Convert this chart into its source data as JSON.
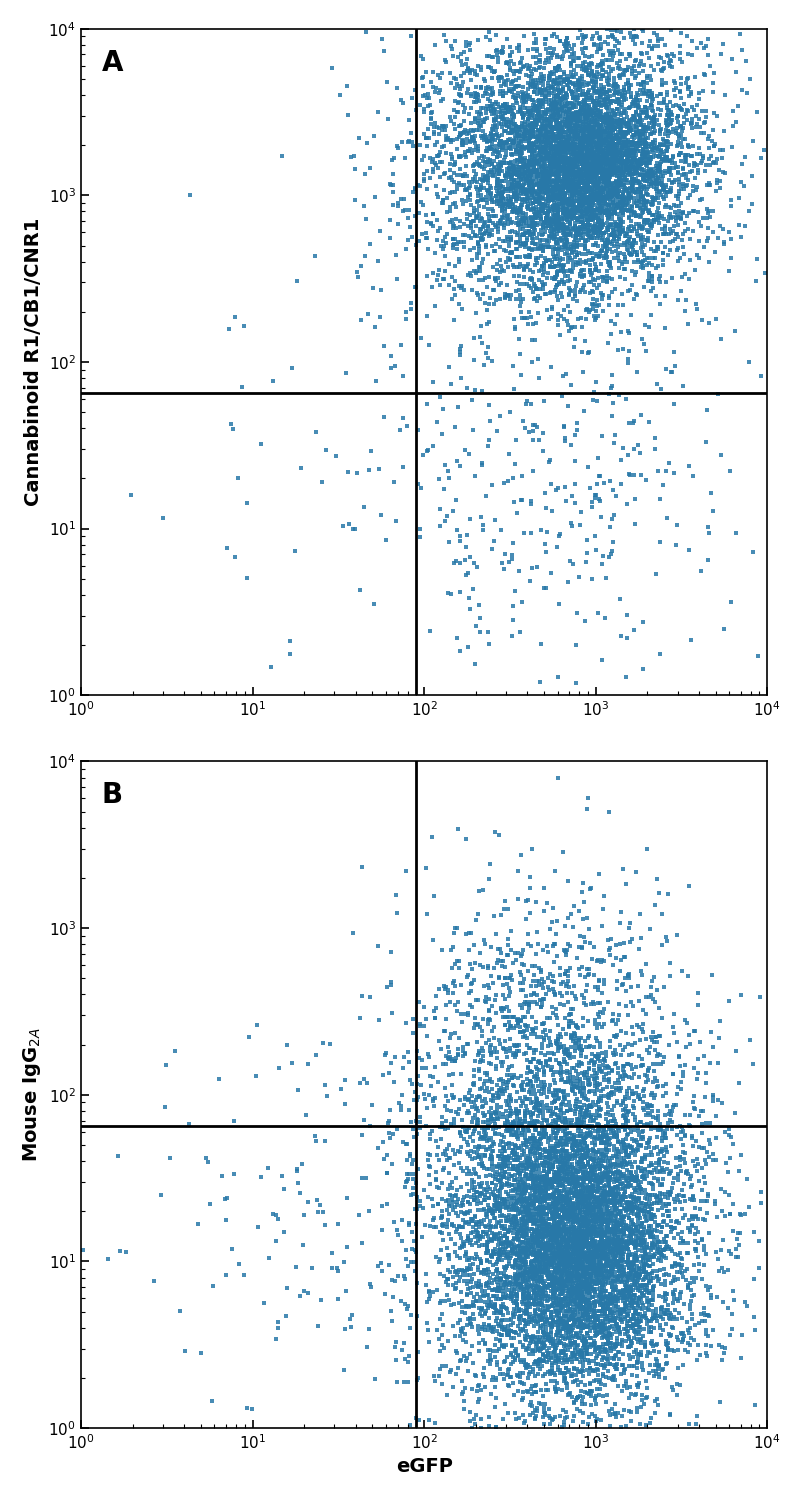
{
  "panel_A": {
    "label": "A",
    "ylabel": "Cannabinoid R1/CB1/CNR1",
    "xlabel": "",
    "vline": 90,
    "hline": 65
  },
  "panel_B": {
    "label": "B",
    "ylabel": "Mouse IgG$_{2A}$",
    "xlabel": "eGFP",
    "vline": 90,
    "hline": 65
  },
  "dot_color": "#2878a8",
  "dot_size": 9,
  "dot_alpha": 0.85,
  "xlim": [
    1,
    10000
  ],
  "ylim": [
    1,
    10000
  ],
  "line_color": "black",
  "line_width": 2.0,
  "label_fontsize": 14,
  "panel_label_fontsize": 20,
  "tick_fontsize": 11,
  "background_color": "white"
}
